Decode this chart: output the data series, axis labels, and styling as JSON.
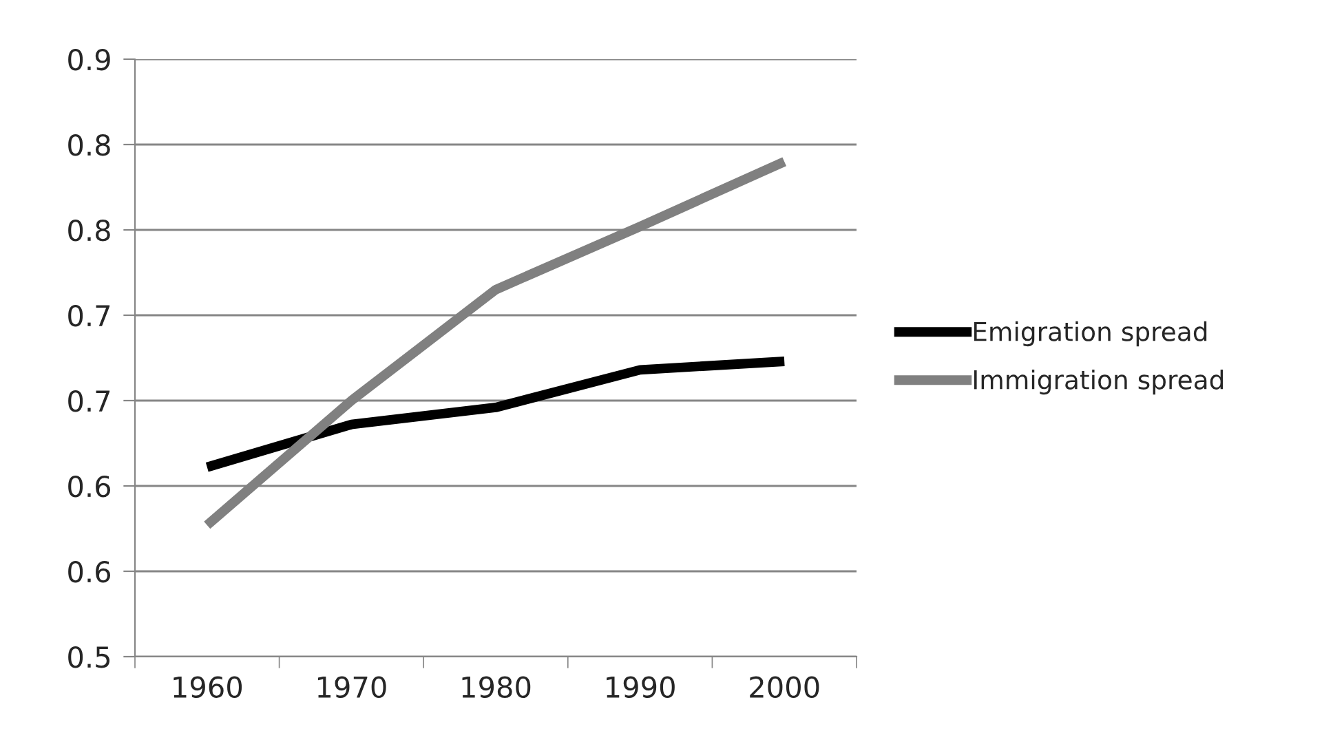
{
  "chart_data": {
    "type": "line",
    "categories": [
      "1960",
      "1970",
      "1980",
      "1990",
      "2000"
    ],
    "series": [
      {
        "name": "Emigration spread",
        "color": "#000000",
        "values": [
          0.611,
          0.636,
          0.646,
          0.668,
          0.673
        ]
      },
      {
        "name": "Immigration spread",
        "color": "#808080",
        "values": [
          0.577,
          0.65,
          0.715,
          0.752,
          0.79
        ]
      }
    ],
    "ylim": [
      0.5,
      0.85
    ],
    "yticks": [
      0.5,
      {
        "value": 0.55,
        "label": "0.6"
      },
      0.6,
      {
        "value": 0.65,
        "label": "0.7"
      },
      0.7,
      {
        "value": 0.75,
        "label": "0.8"
      },
      0.8,
      {
        "value": 0.85,
        "label": "0.9"
      }
    ],
    "grid": "y",
    "legend": "right",
    "marker": "none",
    "line_style": "solid"
  }
}
